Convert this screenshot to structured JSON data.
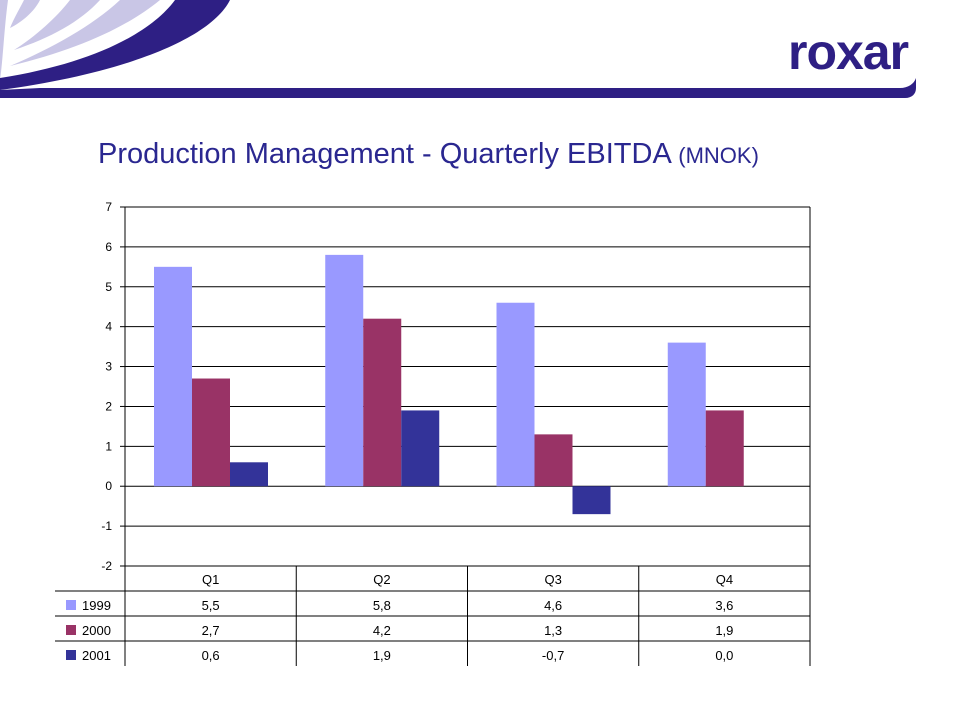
{
  "brand": {
    "logo_text": "roxar"
  },
  "colors": {
    "primary": "#2e1f84",
    "title": "#2a2790",
    "swoosh_light": "#c9c6e6"
  },
  "slide": {
    "title": "Production Management - Quarterly EBITDA",
    "unit": "(MNOK)"
  },
  "chart_data": {
    "type": "bar",
    "title": "",
    "categories": [
      "Q1",
      "Q2",
      "Q3",
      "Q4"
    ],
    "series": [
      {
        "name": "1999",
        "color": "#9999ff",
        "values": [
          5.5,
          5.8,
          4.6,
          3.6
        ],
        "labels": [
          "5,5",
          "5,8",
          "4,6",
          "3,6"
        ]
      },
      {
        "name": "2000",
        "color": "#993366",
        "values": [
          2.7,
          4.2,
          1.3,
          1.9
        ],
        "labels": [
          "2,7",
          "4,2",
          "1,3",
          "1,9"
        ]
      },
      {
        "name": "2001",
        "color": "#333399",
        "values": [
          0.6,
          1.9,
          -0.7,
          0.0
        ],
        "labels": [
          "0,6",
          "1,9",
          "-0,7",
          "0,0"
        ]
      }
    ],
    "ylim": [
      -2,
      7
    ],
    "yticks": [
      -2,
      -1,
      0,
      1,
      2,
      3,
      4,
      5,
      6,
      7
    ],
    "grid": true,
    "legend": "data-table-left"
  }
}
